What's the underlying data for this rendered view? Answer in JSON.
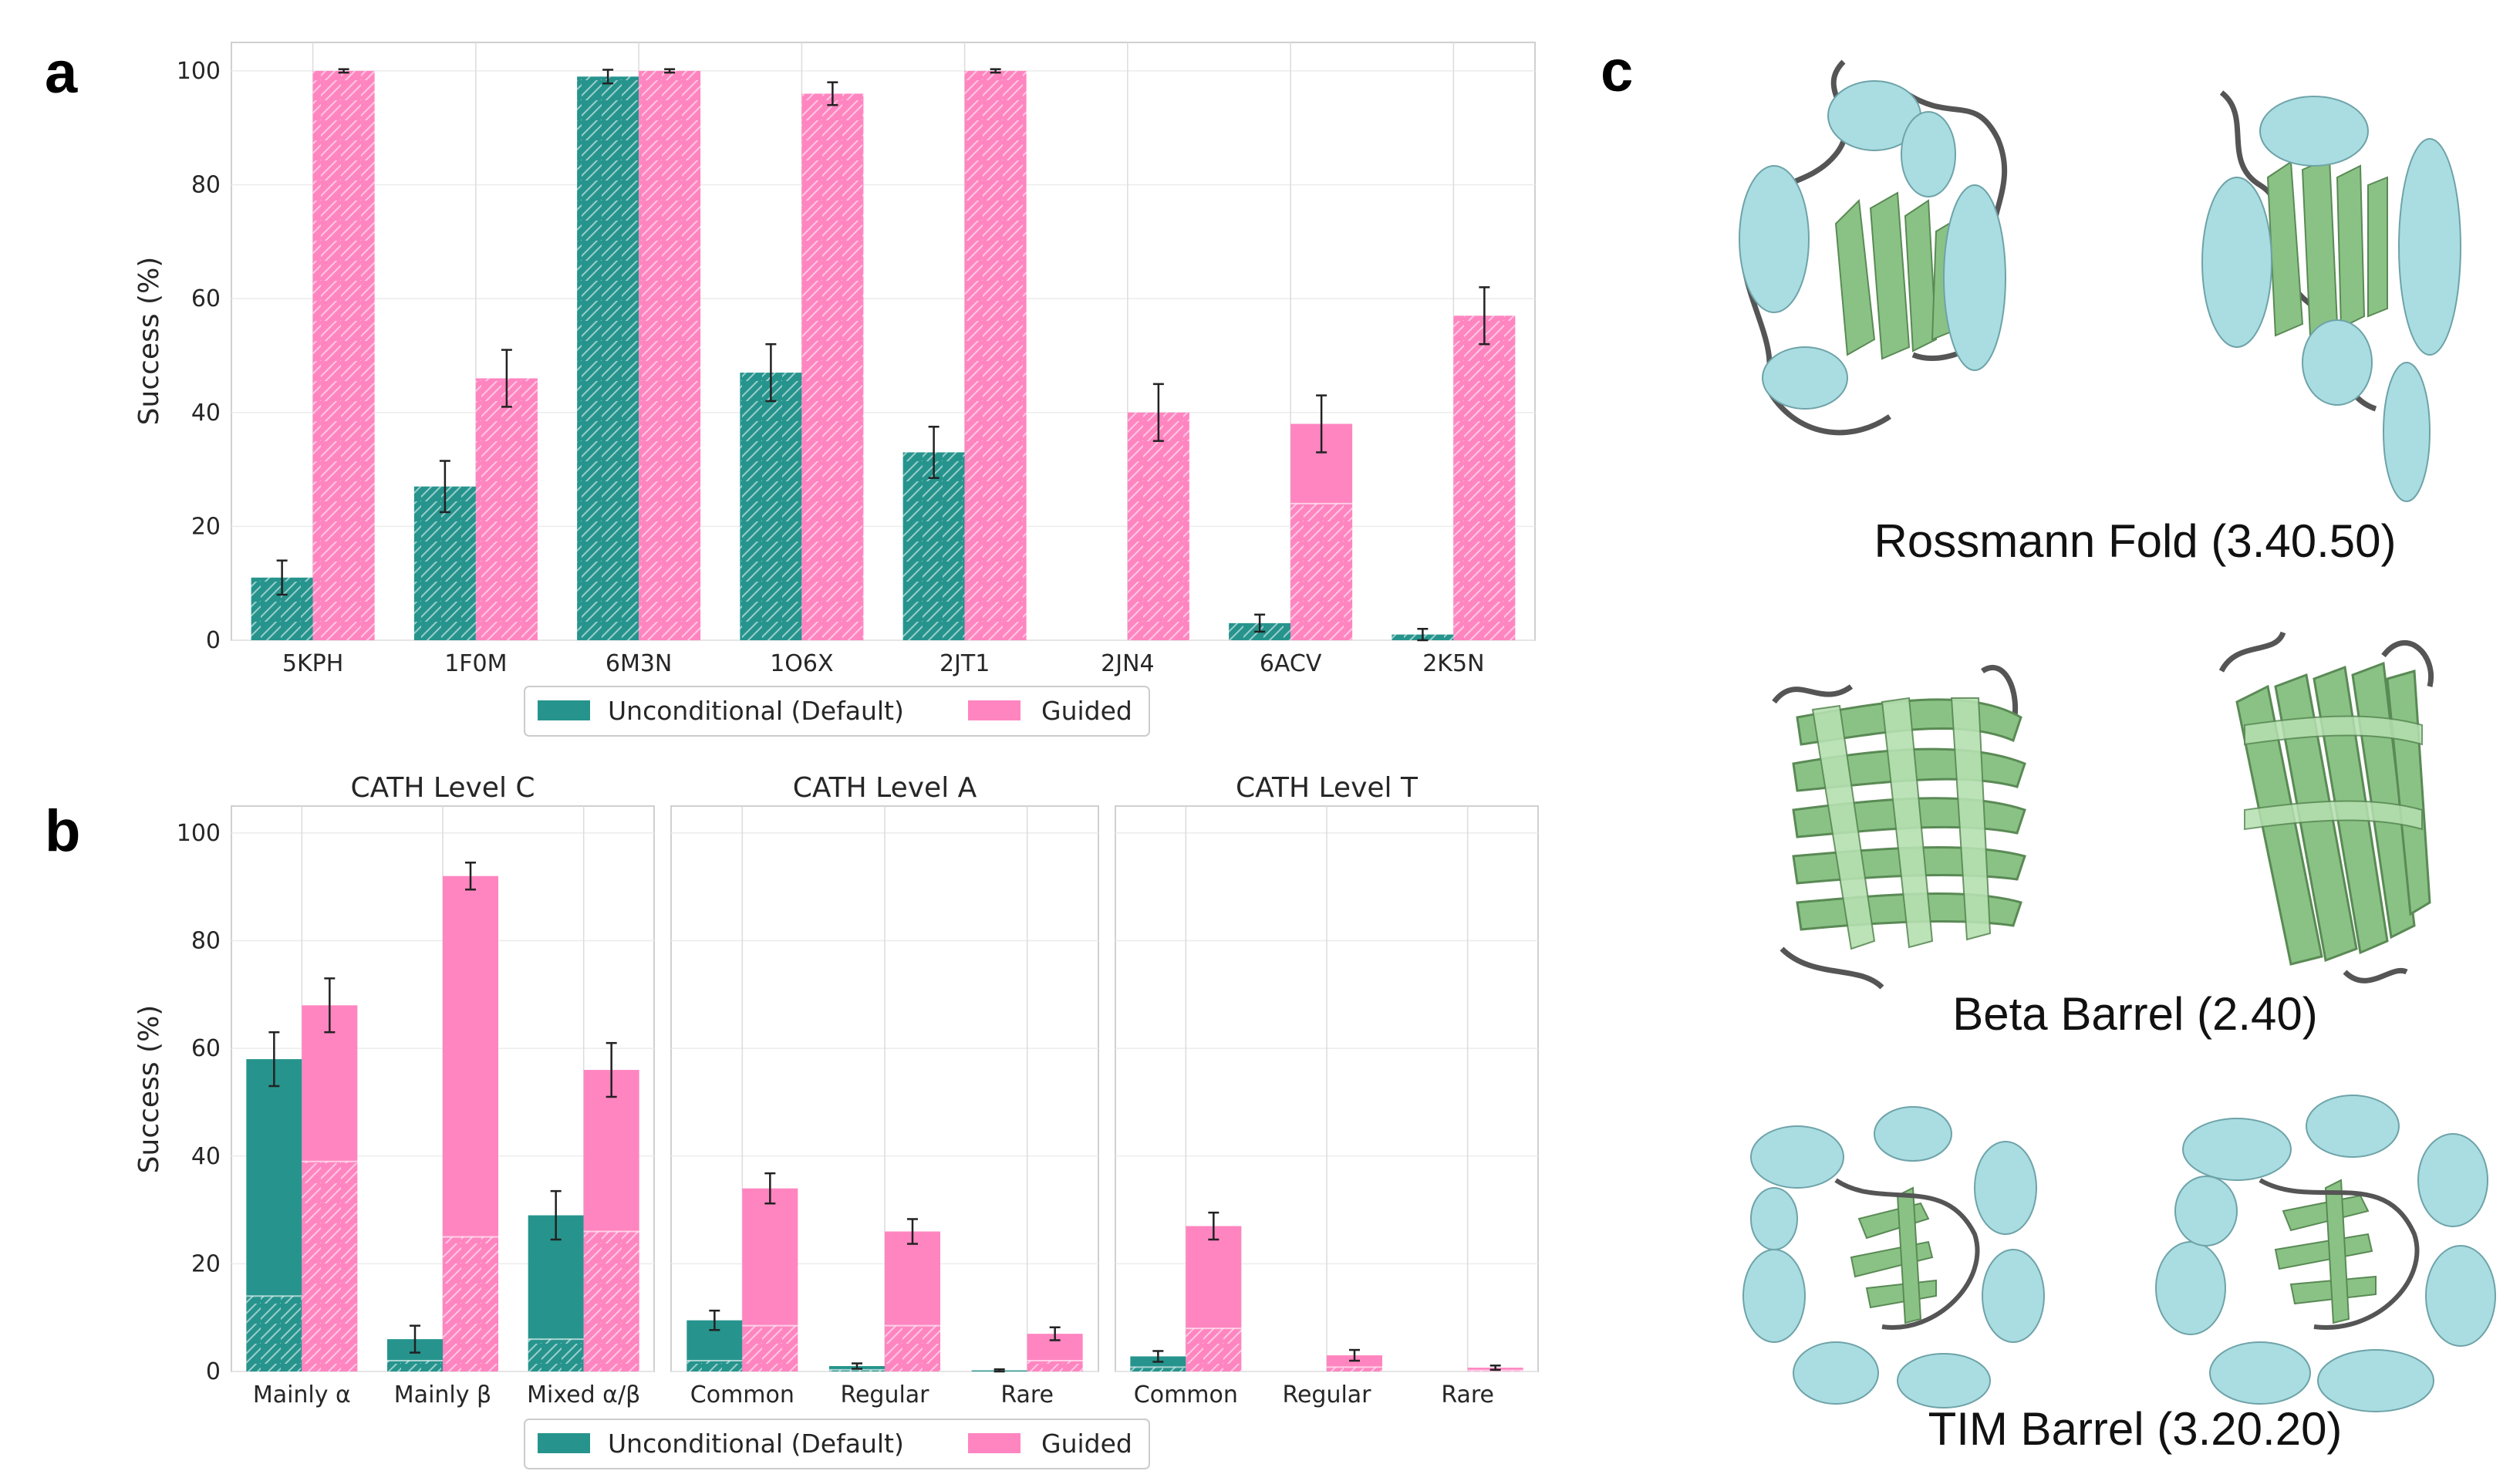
{
  "colors": {
    "unconditional": "#26948d",
    "guided": "#ff85c0",
    "helix": "#a9dde2",
    "sheet": "#8ac285",
    "loop": "#555555"
  },
  "labels": {
    "a": "a",
    "b": "b",
    "c": "c"
  },
  "legend": {
    "unconditional": "Unconditional (Default)",
    "guided": "Guided"
  },
  "chart_data": [
    {
      "type": "bar",
      "panel": "a",
      "ylabel": "Success (%)",
      "ylim": [
        0,
        105
      ],
      "yticks": [
        0,
        20,
        40,
        60,
        80,
        100
      ],
      "categories": [
        "5KPH",
        "1F0M",
        "6M3N",
        "1O6X",
        "2JT1",
        "2JN4",
        "6ACV",
        "2K5N"
      ],
      "series": [
        {
          "name": "Unconditional (Default)",
          "values": [
            11,
            27,
            99,
            47,
            33,
            0,
            3,
            1
          ],
          "err": [
            3.0,
            4.5,
            1.2,
            5.0,
            4.5,
            0,
            1.5,
            1.0
          ]
        },
        {
          "name": "Guided",
          "values": [
            100,
            46,
            100,
            96,
            100,
            40,
            38,
            57
          ],
          "err": [
            0.3,
            5.0,
            0.3,
            2.0,
            0.3,
            5.0,
            5.0,
            5.0
          ],
          "hatched_part": [
            100,
            46,
            100,
            96,
            100,
            40,
            24,
            57
          ]
        }
      ],
      "grid": true,
      "legend_position": "bottom-center"
    },
    {
      "type": "bar",
      "panel": "b",
      "ylabel": "Success (%)",
      "ylim": [
        0,
        105
      ],
      "yticks": [
        0,
        20,
        40,
        60,
        80,
        100
      ],
      "subplots": [
        {
          "title": "CATH Level C",
          "categories": [
            "Mainly α",
            "Mainly β",
            "Mixed α/β"
          ],
          "series": [
            {
              "name": "Unconditional (Default)",
              "values": [
                58,
                6,
                29
              ],
              "err": [
                5,
                2.5,
                4.5
              ],
              "hatched_part": [
                14,
                2,
                6
              ]
            },
            {
              "name": "Guided",
              "values": [
                68,
                92,
                56
              ],
              "err": [
                5,
                2.5,
                5
              ],
              "hatched_part": [
                39,
                25,
                26
              ]
            }
          ]
        },
        {
          "title": "CATH Level A",
          "categories": [
            "Common",
            "Regular",
            "Rare"
          ],
          "series": [
            {
              "name": "Unconditional (Default)",
              "values": [
                9.5,
                1,
                0.2
              ],
              "err": [
                1.8,
                0.5,
                0.2
              ],
              "hatched_part": [
                2,
                0.3,
                0
              ]
            },
            {
              "name": "Guided",
              "values": [
                34,
                26,
                7
              ],
              "err": [
                2.8,
                2.3,
                1.2
              ],
              "hatched_part": [
                8.5,
                8.5,
                2
              ]
            }
          ]
        },
        {
          "title": "CATH Level T",
          "categories": [
            "Common",
            "Regular",
            "Rare"
          ],
          "series": [
            {
              "name": "Unconditional (Default)",
              "values": [
                2.8,
                0,
                0
              ],
              "err": [
                1.0,
                0,
                0
              ],
              "hatched_part": [
                0.8,
                0,
                0
              ]
            },
            {
              "name": "Guided",
              "values": [
                27,
                3,
                0.7
              ],
              "err": [
                2.5,
                1.0,
                0.4
              ],
              "hatched_part": [
                8,
                0.8,
                0.2
              ]
            }
          ]
        }
      ],
      "grid": true,
      "legend_position": "bottom-center"
    }
  ],
  "panel_c": {
    "captions": [
      "Rossmann Fold (3.40.50)",
      "Beta Barrel (2.40)",
      "TIM Barrel (3.20.20)"
    ]
  }
}
